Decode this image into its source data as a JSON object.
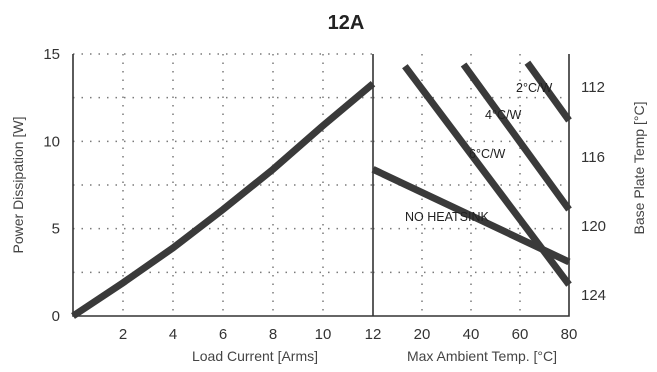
{
  "chart_data": [
    {
      "type": "line",
      "title": "12A",
      "xlabel": "Load Current  [Arms]",
      "ylabel": "Power Dissipation [W]",
      "xlim": [
        0,
        12
      ],
      "ylim": [
        0,
        15
      ],
      "x_ticks": [
        "2",
        "4",
        "6",
        "8",
        "10",
        "12"
      ],
      "y_ticks": [
        "0",
        "5",
        "10",
        "15"
      ],
      "grid": true,
      "series": [
        {
          "x": [
            0,
            2,
            4,
            6,
            8,
            10,
            12
          ],
          "y": [
            0,
            1.9,
            3.9,
            6.1,
            8.4,
            10.9,
            13.3
          ]
        }
      ]
    },
    {
      "type": "line",
      "xlabel": "Max Ambient Temp. [°C]",
      "ylabel_right": "Base Plate Temp [°C]",
      "xlim": [
        0,
        80
      ],
      "ylim": [
        0,
        15
      ],
      "x_ticks": [
        "20",
        "40",
        "60",
        "80"
      ],
      "right_ticks": [
        "112",
        "116",
        "120",
        "124"
      ],
      "grid": true,
      "series": [
        {
          "name": "2°C/W",
          "x": [
            63,
            80
          ],
          "y": [
            14.5,
            11.2
          ]
        },
        {
          "name": "4°C/W",
          "x": [
            37,
            80
          ],
          "y": [
            14.4,
            6.1
          ]
        },
        {
          "name": "6°C/W",
          "x": [
            13,
            80
          ],
          "y": [
            14.3,
            1.8
          ]
        },
        {
          "name": "NO HEATSINK",
          "x": [
            0,
            80
          ],
          "y": [
            8.4,
            3.1
          ]
        }
      ]
    }
  ]
}
